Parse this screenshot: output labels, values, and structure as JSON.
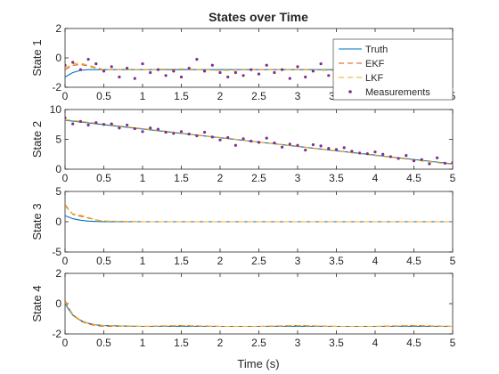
{
  "figure": {
    "title": "States over Time",
    "xlabel": "Time (s)"
  },
  "colors": {
    "truth": "#0072BD",
    "ekf": "#D95319",
    "lkf": "#EDB120",
    "meas": "#7E2F8E",
    "axis": "#262626"
  },
  "chart_data": [
    {
      "type": "line",
      "ylabel": "State 1",
      "xlim": [
        0,
        5
      ],
      "ylim": [
        -2,
        2
      ],
      "xticks": [
        0,
        0.5,
        1,
        1.5,
        2,
        2.5,
        3,
        3.5,
        4,
        4.5,
        5
      ],
      "yticks": [
        -2,
        0,
        2
      ],
      "legend": {
        "position": "top-right",
        "entries": [
          "Truth",
          "EKF",
          "LKF",
          "Measurements"
        ]
      },
      "series": [
        {
          "name": "Truth",
          "style": "solid",
          "color": "#0072BD",
          "x": [
            0,
            0.1,
            0.2,
            0.3,
            0.4,
            0.5,
            1,
            1.5,
            2,
            2.5,
            3,
            3.5,
            4,
            4.5,
            5
          ],
          "y": [
            -1.3,
            -1.0,
            -0.85,
            -0.8,
            -0.8,
            -0.8,
            -0.8,
            -0.8,
            -0.8,
            -0.8,
            -0.8,
            -0.8,
            -0.8,
            -0.8,
            -0.8
          ]
        },
        {
          "name": "EKF",
          "style": "dashed",
          "color": "#D95319",
          "x": [
            0,
            0.1,
            0.2,
            0.3,
            0.4,
            0.5,
            1,
            1.5,
            2,
            2.5,
            3,
            3.5,
            4,
            4.5,
            5
          ],
          "y": [
            -0.8,
            -0.5,
            -0.45,
            -0.55,
            -0.7,
            -0.8,
            -0.8,
            -0.75,
            -0.85,
            -0.8,
            -0.8,
            -0.85,
            -0.8,
            -0.8,
            -0.8
          ]
        },
        {
          "name": "LKF",
          "style": "dashed",
          "color": "#EDB120",
          "x": [
            0,
            0.1,
            0.2,
            0.3,
            0.4,
            0.5,
            1,
            1.5,
            2,
            2.5,
            3,
            3.5,
            4,
            4.5,
            5
          ],
          "y": [
            -0.7,
            -0.4,
            -0.35,
            -0.5,
            -0.65,
            -0.8,
            -0.8,
            -0.75,
            -0.85,
            -0.8,
            -0.8,
            -0.85,
            -0.8,
            -0.8,
            -0.8
          ]
        }
      ],
      "measurements": {
        "name": "Measurements",
        "color": "#7E2F8E",
        "x": [
          0,
          0.1,
          0.2,
          0.3,
          0.4,
          0.5,
          0.6,
          0.7,
          0.8,
          0.9,
          1.0,
          1.1,
          1.2,
          1.3,
          1.4,
          1.5,
          1.6,
          1.7,
          1.8,
          1.9,
          2.0,
          2.1,
          2.2,
          2.3,
          2.4,
          2.5,
          2.6,
          2.7,
          2.8,
          2.9,
          3.0,
          3.1,
          3.2,
          3.3,
          3.4,
          3.5,
          3.6,
          3.7,
          3.8,
          3.9,
          4.0,
          4.1,
          4.2,
          4.3,
          4.4,
          4.5,
          4.6,
          4.7,
          4.8,
          4.9,
          5.0
        ],
        "y": [
          -0.5,
          -0.3,
          -0.8,
          -0.1,
          -0.4,
          -0.9,
          -0.6,
          -1.3,
          -0.7,
          -1.4,
          -0.4,
          -1.0,
          -0.8,
          -1.2,
          -0.9,
          -1.3,
          -0.7,
          -0.1,
          -0.9,
          -0.5,
          -1.0,
          -1.3,
          -1.0,
          -1.2,
          -0.8,
          -1.1,
          -0.5,
          -1.0,
          -0.8,
          -1.4,
          -0.6,
          -1.3,
          -0.9,
          -0.4,
          -1.2,
          -0.7,
          -1.0,
          -1.4,
          -1.1,
          -0.8,
          -1.5,
          -0.6,
          -1.0,
          -1.3,
          -0.7,
          -1.2,
          -0.9,
          -1.4,
          -0.8,
          -1.1,
          -1.0
        ]
      }
    },
    {
      "type": "line",
      "ylabel": "State 2",
      "xlim": [
        0,
        5
      ],
      "ylim": [
        0,
        10
      ],
      "xticks": [
        0,
        0.5,
        1,
        1.5,
        2,
        2.5,
        3,
        3.5,
        4,
        4.5,
        5
      ],
      "yticks": [
        0,
        5,
        10
      ],
      "series": [
        {
          "name": "Truth",
          "style": "solid",
          "color": "#0072BD",
          "x": [
            0,
            5
          ],
          "y": [
            8.2,
            0.9
          ]
        },
        {
          "name": "EKF",
          "style": "dashed",
          "color": "#D95319",
          "x": [
            0,
            5
          ],
          "y": [
            8.3,
            0.8
          ]
        },
        {
          "name": "LKF",
          "style": "dashed",
          "color": "#EDB120",
          "x": [
            0,
            5
          ],
          "y": [
            8.3,
            0.8
          ]
        }
      ],
      "measurements": {
        "name": "Measurements",
        "color": "#7E2F8E",
        "x": [
          0,
          0.1,
          0.2,
          0.3,
          0.4,
          0.5,
          0.6,
          0.7,
          0.8,
          0.9,
          1.0,
          1.1,
          1.2,
          1.3,
          1.4,
          1.5,
          1.6,
          1.7,
          1.8,
          1.9,
          2.0,
          2.1,
          2.2,
          2.3,
          2.4,
          2.5,
          2.6,
          2.7,
          2.8,
          2.9,
          3.0,
          3.1,
          3.2,
          3.3,
          3.4,
          3.5,
          3.6,
          3.7,
          3.8,
          3.9,
          4.0,
          4.1,
          4.2,
          4.3,
          4.4,
          4.5,
          4.6,
          4.7,
          4.8,
          4.9,
          5.0
        ],
        "y": [
          8.6,
          7.6,
          8.0,
          7.4,
          7.8,
          7.5,
          7.6,
          6.9,
          7.4,
          6.8,
          6.3,
          6.9,
          6.7,
          6.2,
          6.0,
          6.3,
          5.9,
          5.6,
          6.2,
          5.4,
          4.9,
          5.3,
          4.0,
          5.1,
          4.7,
          4.5,
          5.2,
          4.4,
          3.7,
          4.2,
          4.0,
          3.2,
          4.1,
          3.9,
          3.5,
          3.3,
          3.6,
          3.0,
          2.7,
          2.6,
          2.9,
          2.5,
          2.1,
          1.8,
          2.3,
          1.4,
          1.6,
          0.9,
          1.9,
          1.0,
          1.1
        ]
      }
    },
    {
      "type": "line",
      "ylabel": "State 3",
      "xlim": [
        0,
        5
      ],
      "ylim": [
        -5,
        5
      ],
      "xticks": [
        0,
        0.5,
        1,
        1.5,
        2,
        2.5,
        3,
        3.5,
        4,
        4.5,
        5
      ],
      "yticks": [
        -5,
        0,
        5
      ],
      "series": [
        {
          "name": "Truth",
          "style": "solid",
          "color": "#0072BD",
          "x": [
            0,
            0.1,
            0.2,
            0.3,
            0.4,
            0.5,
            1,
            1.5,
            2,
            2.5,
            3,
            3.5,
            4,
            4.5,
            5
          ],
          "y": [
            1.0,
            0.5,
            0.25,
            0.1,
            0.05,
            0.02,
            0,
            0,
            0,
            0,
            0,
            0,
            0,
            0,
            0
          ]
        },
        {
          "name": "EKF",
          "style": "dashed",
          "color": "#D95319",
          "x": [
            0,
            0.05,
            0.1,
            0.2,
            0.3,
            0.4,
            0.5,
            1,
            1.5,
            2,
            2.5,
            3,
            3.5,
            4,
            4.5,
            5
          ],
          "y": [
            2.8,
            2.0,
            1.2,
            0.9,
            0.6,
            0.3,
            0.1,
            0,
            0,
            0,
            0,
            0,
            0,
            0,
            0,
            0
          ]
        },
        {
          "name": "LKF",
          "style": "dashed",
          "color": "#EDB120",
          "x": [
            0,
            0.05,
            0.1,
            0.2,
            0.3,
            0.4,
            0.5,
            1,
            1.5,
            2,
            2.5,
            3,
            3.5,
            4,
            4.5,
            5
          ],
          "y": [
            2.6,
            1.9,
            1.3,
            1.1,
            0.7,
            0.3,
            0.1,
            0,
            0,
            0,
            0,
            0,
            0,
            0,
            0,
            0
          ]
        }
      ]
    },
    {
      "type": "line",
      "ylabel": "State 4",
      "xlim": [
        0,
        5
      ],
      "ylim": [
        -2,
        2
      ],
      "xticks": [
        0,
        0.5,
        1,
        1.5,
        2,
        2.5,
        3,
        3.5,
        4,
        4.5,
        5
      ],
      "yticks": [
        -2,
        0,
        2
      ],
      "series": [
        {
          "name": "Truth",
          "style": "solid",
          "color": "#0072BD",
          "x": [
            0,
            0.05,
            0.1,
            0.15,
            0.2,
            0.3,
            0.4,
            0.5,
            1,
            1.5,
            2,
            2.5,
            3,
            3.5,
            4,
            4.5,
            5
          ],
          "y": [
            0,
            -0.4,
            -0.75,
            -0.95,
            -1.1,
            -1.3,
            -1.4,
            -1.45,
            -1.5,
            -1.5,
            -1.5,
            -1.5,
            -1.5,
            -1.5,
            -1.5,
            -1.5,
            -1.5
          ]
        },
        {
          "name": "EKF",
          "style": "dashed",
          "color": "#D95319",
          "x": [
            0,
            0.05,
            0.1,
            0.15,
            0.2,
            0.3,
            0.4,
            0.5,
            1,
            1.5,
            2,
            2.5,
            3,
            3.5,
            4,
            4.5,
            5
          ],
          "y": [
            0.2,
            -0.3,
            -0.7,
            -0.95,
            -1.15,
            -1.35,
            -1.45,
            -1.5,
            -1.5,
            -1.45,
            -1.5,
            -1.5,
            -1.45,
            -1.5,
            -1.5,
            -1.45,
            -1.5
          ]
        },
        {
          "name": "LKF",
          "style": "dashed",
          "color": "#EDB120",
          "x": [
            0,
            0.05,
            0.1,
            0.15,
            0.2,
            0.3,
            0.4,
            0.5,
            1,
            1.5,
            2,
            2.5,
            3,
            3.5,
            4,
            4.5,
            5
          ],
          "y": [
            0.1,
            -0.35,
            -0.7,
            -0.9,
            -1.1,
            -1.3,
            -1.4,
            -1.45,
            -1.5,
            -1.45,
            -1.5,
            -1.5,
            -1.45,
            -1.5,
            -1.5,
            -1.45,
            -1.5
          ]
        }
      ]
    }
  ]
}
